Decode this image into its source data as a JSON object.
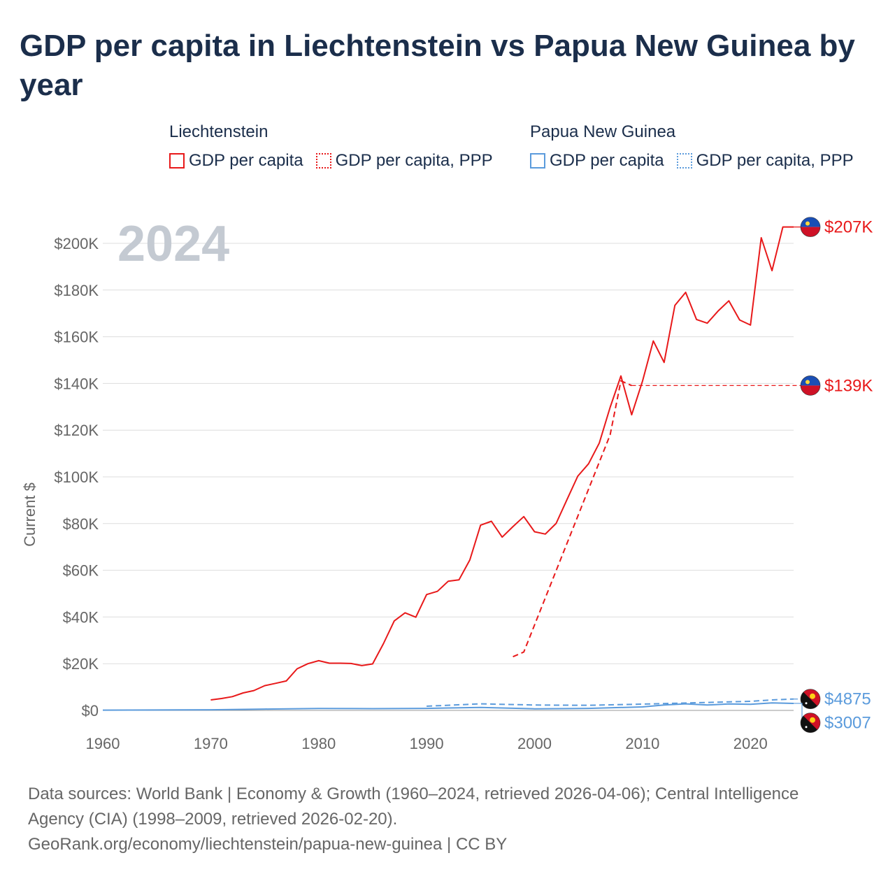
{
  "title": "GDP per capita in Liechtenstein vs Papua New Guinea by year",
  "legend": {
    "groups": [
      {
        "name": "Liechtenstein",
        "items": [
          {
            "label": "GDP per capita",
            "style": "solid",
            "color": "#e8191a"
          },
          {
            "label": "GDP per capita, PPP",
            "style": "dotted",
            "color": "#e8191a"
          }
        ]
      },
      {
        "name": "Papua New Guinea",
        "items": [
          {
            "label": "GDP per capita",
            "style": "solid",
            "color": "#5b9bdc"
          },
          {
            "label": "GDP per capita, PPP",
            "style": "dotted",
            "color": "#5b9bdc"
          }
        ]
      }
    ]
  },
  "chart_data": {
    "type": "line",
    "year_watermark": "2024",
    "ylabel": "Current $",
    "xlabel": "",
    "xlim": [
      1960,
      2024
    ],
    "ylim": [
      0,
      210000
    ],
    "x_ticks": [
      1960,
      1970,
      1980,
      1990,
      2000,
      2010,
      2020
    ],
    "y_ticks": [
      {
        "value": 0,
        "label": "$0"
      },
      {
        "value": 20000,
        "label": "$20K"
      },
      {
        "value": 40000,
        "label": "$40K"
      },
      {
        "value": 60000,
        "label": "$60K"
      },
      {
        "value": 80000,
        "label": "$80K"
      },
      {
        "value": 100000,
        "label": "$100K"
      },
      {
        "value": 120000,
        "label": "$120K"
      },
      {
        "value": 140000,
        "label": "$140K"
      },
      {
        "value": 160000,
        "label": "$160K"
      },
      {
        "value": 180000,
        "label": "$180K"
      },
      {
        "value": 200000,
        "label": "$200K"
      }
    ],
    "grid": true,
    "series": [
      {
        "name": "Liechtenstein GDP per capita",
        "country": "Liechtenstein",
        "color": "#e8191a",
        "dash": "solid",
        "end_label": "$207K",
        "end_value": 207000,
        "points": [
          [
            1970,
            4500
          ],
          [
            1971,
            5100
          ],
          [
            1972,
            5900
          ],
          [
            1973,
            7500
          ],
          [
            1974,
            8500
          ],
          [
            1975,
            10600
          ],
          [
            1976,
            11600
          ],
          [
            1977,
            12600
          ],
          [
            1978,
            17800
          ],
          [
            1979,
            20000
          ],
          [
            1980,
            21300
          ],
          [
            1981,
            20200
          ],
          [
            1982,
            20200
          ],
          [
            1983,
            20100
          ],
          [
            1984,
            19200
          ],
          [
            1985,
            19900
          ],
          [
            1986,
            28600
          ],
          [
            1987,
            38300
          ],
          [
            1988,
            41800
          ],
          [
            1989,
            39900
          ],
          [
            1990,
            49600
          ],
          [
            1991,
            51000
          ],
          [
            1992,
            55300
          ],
          [
            1993,
            55900
          ],
          [
            1994,
            64400
          ],
          [
            1995,
            79300
          ],
          [
            1996,
            81000
          ],
          [
            1997,
            74200
          ],
          [
            1998,
            78700
          ],
          [
            1999,
            83000
          ],
          [
            2000,
            76500
          ],
          [
            2001,
            75500
          ],
          [
            2002,
            80100
          ],
          [
            2003,
            90200
          ],
          [
            2004,
            100300
          ],
          [
            2005,
            105600
          ],
          [
            2006,
            114500
          ],
          [
            2007,
            129800
          ],
          [
            2008,
            143200
          ],
          [
            2009,
            126600
          ],
          [
            2010,
            141000
          ],
          [
            2011,
            158200
          ],
          [
            2012,
            149000
          ],
          [
            2013,
            173400
          ],
          [
            2014,
            179000
          ],
          [
            2015,
            167400
          ],
          [
            2016,
            165800
          ],
          [
            2017,
            171000
          ],
          [
            2018,
            175400
          ],
          [
            2019,
            167200
          ],
          [
            2020,
            165000
          ],
          [
            2021,
            202400
          ],
          [
            2022,
            188300
          ],
          [
            2023,
            207000
          ],
          [
            2024,
            207000
          ]
        ]
      },
      {
        "name": "Liechtenstein GDP per capita, PPP",
        "country": "Liechtenstein",
        "color": "#e8191a",
        "dash": "dashed",
        "end_label": "$139K",
        "end_value": 139100,
        "points": [
          [
            1998,
            23000
          ],
          [
            1999,
            25000
          ],
          [
            2007,
            118000
          ],
          [
            2008,
            141100
          ],
          [
            2009,
            139100
          ]
        ]
      },
      {
        "name": "Papua New Guinea GDP per capita",
        "country": "Papua New Guinea",
        "color": "#5b9bdc",
        "dash": "solid",
        "end_label": "$3007",
        "end_value": 3007,
        "points": [
          [
            1960,
            120
          ],
          [
            1965,
            170
          ],
          [
            1970,
            260
          ],
          [
            1975,
            560
          ],
          [
            1980,
            840
          ],
          [
            1985,
            760
          ],
          [
            1990,
            880
          ],
          [
            1995,
            1280
          ],
          [
            2000,
            700
          ],
          [
            2005,
            860
          ],
          [
            2010,
            1500
          ],
          [
            2012,
            2350
          ],
          [
            2014,
            2800
          ],
          [
            2016,
            2300
          ],
          [
            2018,
            2750
          ],
          [
            2020,
            2600
          ],
          [
            2022,
            3200
          ],
          [
            2024,
            3007
          ]
        ]
      },
      {
        "name": "Papua New Guinea GDP per capita, PPP",
        "country": "Papua New Guinea",
        "color": "#5b9bdc",
        "dash": "dashed",
        "end_label": "$4875",
        "end_value": 4875,
        "points": [
          [
            1990,
            1800
          ],
          [
            1995,
            2800
          ],
          [
            2000,
            2300
          ],
          [
            2005,
            2200
          ],
          [
            2010,
            2700
          ],
          [
            2015,
            3300
          ],
          [
            2020,
            3900
          ],
          [
            2022,
            4500
          ],
          [
            2024,
            4875
          ]
        ]
      }
    ]
  },
  "footer": {
    "line1": "Data sources: World Bank | Economy & Growth (1960–2024, retrieved 2026-04-06); Central Intelligence",
    "line2": "Agency (CIA) (1998–2009, retrieved 2026-02-20).",
    "line3": "GeoRank.org/economy/liechtenstein/papua-new-guinea | CC BY"
  }
}
